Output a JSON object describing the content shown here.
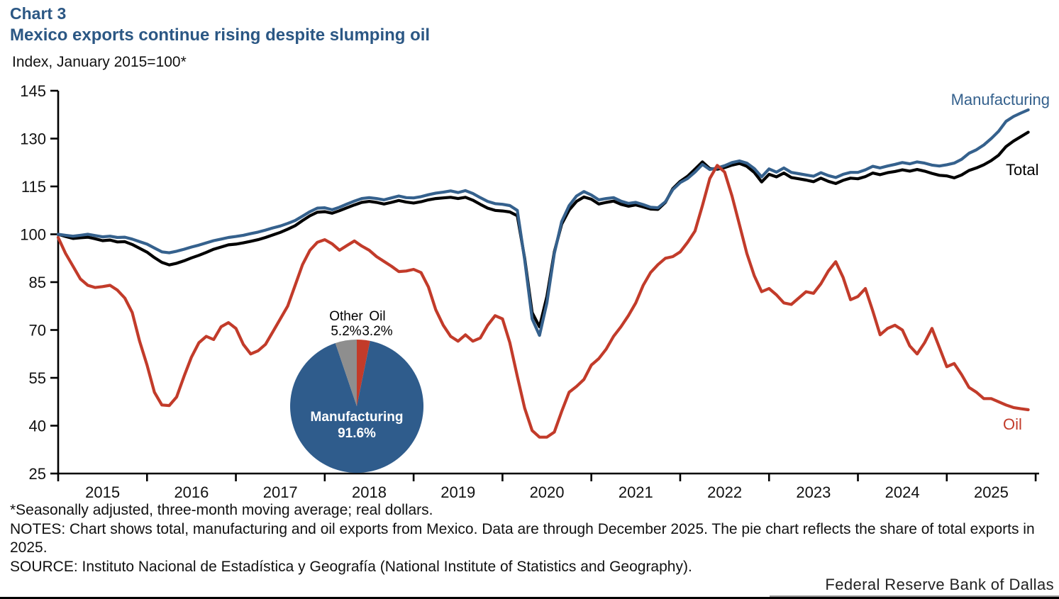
{
  "header": {
    "chart_number": "Chart 3",
    "title": "Mexico exports continue rising despite slumping oil",
    "unit_label": "Index, January 2015=100*"
  },
  "colors": {
    "title_blue": "#2B5784",
    "manufacturing_blue": "#35618D",
    "total_black": "#000000",
    "oil_red": "#C23B2A",
    "other_gray": "#8E8E8E"
  },
  "chart_data": {
    "type": "line",
    "title": "Mexico exports continue rising despite slumping oil",
    "xlabel": "",
    "ylabel": "Index, January 2015=100*",
    "frequency": "monthly",
    "x_start": "2015-01",
    "x_end": "2025-12",
    "ylim": [
      25,
      145
    ],
    "y_ticks": [
      25,
      40,
      55,
      70,
      85,
      100,
      115,
      130,
      145
    ],
    "year_ticks": [
      "2015",
      "2016",
      "2017",
      "2018",
      "2019",
      "2020",
      "2021",
      "2022",
      "2023",
      "2024",
      "2025"
    ],
    "grid": false,
    "legend": "inline-labels",
    "series": [
      {
        "name": "Manufacturing",
        "color": "#35618D",
        "values": [
          100.0,
          99.7,
          99.4,
          99.7,
          100.0,
          99.6,
          99.2,
          99.4,
          99.0,
          99.1,
          98.5,
          97.7,
          96.9,
          95.7,
          94.5,
          94.2,
          94.7,
          95.3,
          96.0,
          96.6,
          97.3,
          98.0,
          98.5,
          99.0,
          99.3,
          99.7,
          100.2,
          100.7,
          101.3,
          102.0,
          102.6,
          103.4,
          104.3,
          105.7,
          107.1,
          108.2,
          108.3,
          107.7,
          108.5,
          109.5,
          110.4,
          111.2,
          111.5,
          111.2,
          110.8,
          111.4,
          112.0,
          111.5,
          111.4,
          111.8,
          112.4,
          112.9,
          113.2,
          113.6,
          113.1,
          113.7,
          112.8,
          111.5,
          110.3,
          109.6,
          109.4,
          109.0,
          107.5,
          92.0,
          73.5,
          68.3,
          78.5,
          94.0,
          104.0,
          109.0,
          112.0,
          113.4,
          112.3,
          110.8,
          111.2,
          111.5,
          110.4,
          109.7,
          110.0,
          109.3,
          108.5,
          108.3,
          110.2,
          114.0,
          116.2,
          117.5,
          119.5,
          121.9,
          120.3,
          120.8,
          121.5,
          122.5,
          123.0,
          122.3,
          120.6,
          118.0,
          120.5,
          119.5,
          120.8,
          119.4,
          119.0,
          118.6,
          118.2,
          119.3,
          118.4,
          117.8,
          118.8,
          119.4,
          119.4,
          120.2,
          121.3,
          120.8,
          121.4,
          121.9,
          122.5,
          122.1,
          122.7,
          122.3,
          121.7,
          121.4,
          121.8,
          122.3,
          123.5,
          125.4,
          126.5,
          128.0,
          130.0,
          132.3,
          135.4,
          136.9,
          138.0,
          139.0
        ]
      },
      {
        "name": "Total",
        "color": "#000000",
        "values": [
          100.0,
          99.3,
          98.7,
          98.9,
          99.1,
          98.6,
          98.0,
          98.2,
          97.6,
          97.7,
          96.8,
          95.6,
          94.4,
          92.7,
          91.2,
          90.4,
          90.9,
          91.7,
          92.6,
          93.4,
          94.3,
          95.3,
          96.0,
          96.7,
          96.9,
          97.3,
          97.8,
          98.3,
          99.0,
          99.8,
          100.6,
          101.6,
          102.7,
          104.3,
          105.8,
          106.9,
          107.1,
          106.6,
          107.4,
          108.3,
          109.2,
          110.0,
          110.3,
          110.0,
          109.5,
          110.0,
          110.6,
          110.1,
          109.8,
          110.2,
          110.8,
          111.2,
          111.4,
          111.6,
          111.2,
          111.6,
          110.7,
          109.4,
          108.2,
          107.5,
          107.3,
          107.0,
          105.8,
          92.5,
          75.5,
          71.0,
          80.5,
          94.5,
          103.2,
          107.6,
          110.3,
          111.7,
          111.0,
          109.5,
          110.0,
          110.4,
          109.4,
          108.8,
          109.2,
          108.6,
          107.9,
          107.8,
          110.0,
          114.3,
          116.6,
          118.2,
          120.4,
          122.7,
          120.6,
          120.4,
          120.9,
          121.7,
          122.2,
          121.3,
          119.4,
          116.4,
          118.8,
          118.0,
          119.2,
          117.8,
          117.4,
          117.0,
          116.5,
          117.6,
          116.6,
          115.9,
          116.9,
          117.6,
          117.4,
          118.1,
          119.2,
          118.7,
          119.3,
          119.7,
          120.2,
          119.8,
          120.3,
          119.8,
          119.1,
          118.5,
          118.3,
          117.7,
          118.6,
          120.0,
          120.8,
          121.8,
          123.1,
          124.8,
          127.5,
          129.2,
          130.6,
          132.0
        ]
      },
      {
        "name": "Oil",
        "color": "#C23B2A",
        "values": [
          99.0,
          94.0,
          90.0,
          86.0,
          84.0,
          83.3,
          83.6,
          84.0,
          82.5,
          80.0,
          75.5,
          66.5,
          59.0,
          50.5,
          46.5,
          46.3,
          49.0,
          55.5,
          61.5,
          66.0,
          68.0,
          67.0,
          71.0,
          72.3,
          70.5,
          65.5,
          62.5,
          63.5,
          65.5,
          69.5,
          73.5,
          77.5,
          84.0,
          90.5,
          95.0,
          97.5,
          98.3,
          97.0,
          95.0,
          96.5,
          97.9,
          96.3,
          95.0,
          93.0,
          91.5,
          90.0,
          88.3,
          88.5,
          89.0,
          88.0,
          83.5,
          76.3,
          71.5,
          68.0,
          66.5,
          68.5,
          66.5,
          67.5,
          71.5,
          74.5,
          73.5,
          66.0,
          55.5,
          45.5,
          38.5,
          36.4,
          36.4,
          38.0,
          44.5,
          50.5,
          52.3,
          54.5,
          59.0,
          61.0,
          64.0,
          68.0,
          71.0,
          74.5,
          78.5,
          84.0,
          88.0,
          90.5,
          92.5,
          93.0,
          94.5,
          97.5,
          101.0,
          109.0,
          117.5,
          121.6,
          119.5,
          112.0,
          103.0,
          94.0,
          87.0,
          82.0,
          83.0,
          81.0,
          78.5,
          78.0,
          80.0,
          82.0,
          81.5,
          84.5,
          88.5,
          91.4,
          86.5,
          79.5,
          80.5,
          83.0,
          76.0,
          68.5,
          70.5,
          71.5,
          70.0,
          65.0,
          62.5,
          66.0,
          70.5,
          64.5,
          58.5,
          59.5,
          56.0,
          52.0,
          50.5,
          48.5,
          48.5,
          47.5,
          46.5,
          45.7,
          45.3,
          45.0
        ]
      }
    ],
    "pie": {
      "type": "pie",
      "note": "slices clockwise from 12 o'clock; share of total exports in 2025",
      "slices": [
        {
          "label": "Oil",
          "pct": 3.2,
          "pct_label": "3.2%",
          "color": "#C23B2A"
        },
        {
          "label": "Manufacturing",
          "pct": 91.6,
          "pct_label": "91.6%",
          "color": "#2F5C8C"
        },
        {
          "label": "Other",
          "pct": 5.2,
          "pct_label": "5.2%",
          "color": "#8E8E8E"
        }
      ]
    }
  },
  "notes": {
    "footnote": "*Seasonally adjusted, three-month moving average; real dollars.",
    "notes": "NOTES: Chart shows total, manufacturing and oil exports from Mexico. Data are through December 2025. The pie chart reflects the share of total exports in 2025.",
    "source": "SOURCE: Instituto Nacional de Estadística y Geografía (National Institute of Statistics and Geography)."
  },
  "footer": {
    "wordmark": "Federal Reserve Bank of Dallas"
  }
}
